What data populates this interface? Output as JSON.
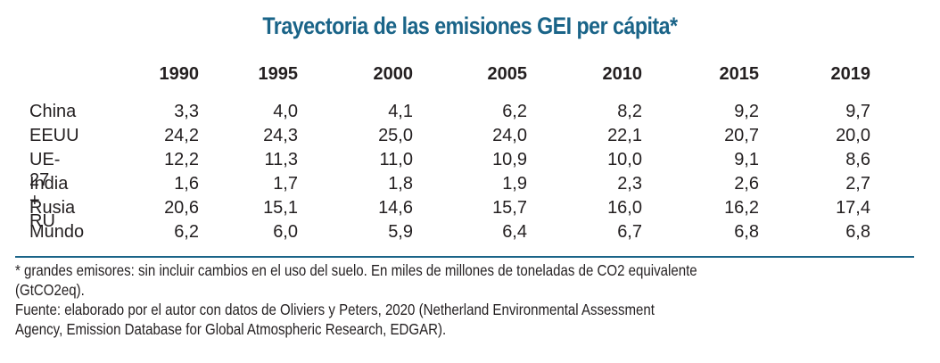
{
  "title": "Trayectoria de las emisiones GEI per cápita*",
  "chart_data": {
    "type": "table",
    "title": "Trayectoria de las emisiones GEI per cápita*",
    "columns": [
      "1990",
      "1995",
      "2000",
      "2005",
      "2010",
      "2015",
      "2019"
    ],
    "rows": [
      {
        "label": "China",
        "values": [
          "3,3",
          "4,0",
          "4,1",
          "6,2",
          "8,2",
          "9,2",
          "9,7"
        ]
      },
      {
        "label": "EEUU",
        "values": [
          "24,2",
          "24,3",
          "25,0",
          "24,0",
          "22,1",
          "20,7",
          "20,0"
        ]
      },
      {
        "label": "UE-27 + RU",
        "values": [
          "12,2",
          "11,3",
          "11,0",
          "10,9",
          "10,0",
          "9,1",
          "8,6"
        ]
      },
      {
        "label": "India",
        "values": [
          "1,6",
          "1,7",
          "1,8",
          "1,9",
          "2,3",
          "2,6",
          "2,7"
        ]
      },
      {
        "label": "Rusia",
        "values": [
          "20,6",
          "15,1",
          "14,6",
          "15,7",
          "16,0",
          "16,2",
          "17,4"
        ]
      },
      {
        "label": "Mundo",
        "values": [
          "6,2",
          "6,0",
          "5,9",
          "6,4",
          "6,7",
          "6,8",
          "6,8"
        ]
      }
    ]
  },
  "notes": [
    "* grandes emisores: sin incluir cambios en el uso del suelo. En miles de millones de toneladas de CO2 equivalente",
    "(GtCO2eq).",
    "Fuente: elaborado por el autor con datos de Oliviers y Peters, 2020 (Netherland Environmental Assessment",
    "Agency, Emission Database for Global Atmospheric Research, EDGAR)."
  ],
  "colors": {
    "title": "#1a6488",
    "rule": "#1a6488",
    "text": "#231f20"
  }
}
